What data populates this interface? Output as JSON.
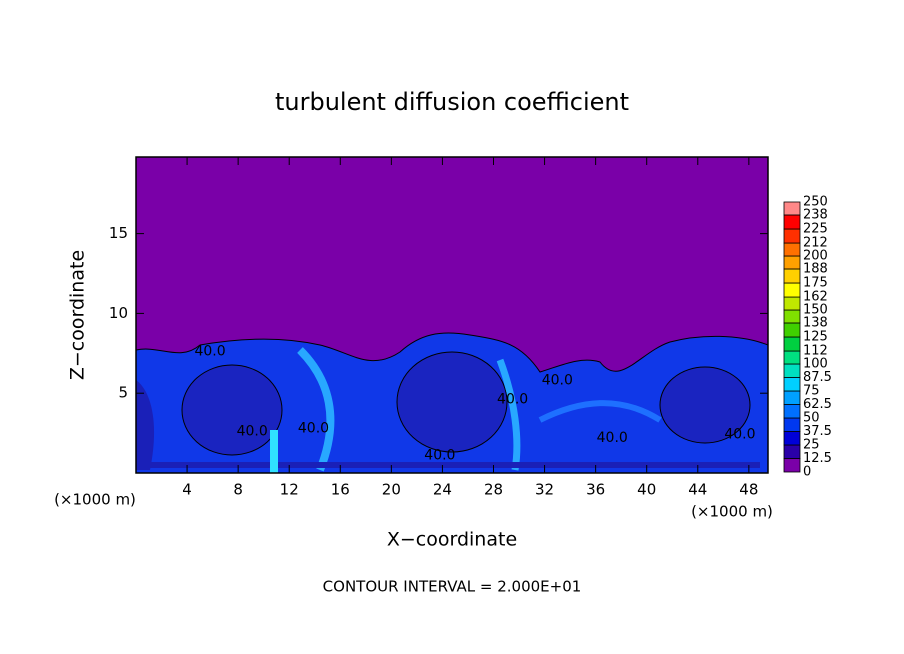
{
  "chart_data": {
    "type": "contour",
    "title": "turbulent diffusion coefficient",
    "x_label": "X−coordinate",
    "y_label": "Z−coordinate",
    "x_unit_labels": [
      "(×1000 m)",
      "(×1000 m)"
    ],
    "footer": "CONTOUR INTERVAL = 2.000E+01",
    "xlim": [
      0,
      49.5
    ],
    "ylim": [
      0,
      19.8
    ],
    "xticks": [
      4,
      8,
      12,
      16,
      20,
      24,
      28,
      32,
      36,
      40,
      44,
      48
    ],
    "yticks": [
      5,
      10,
      15
    ],
    "contour_labels": [
      {
        "value": 40,
        "label": "40.0",
        "x": 5.8,
        "y": 7.6
      },
      {
        "value": 40,
        "label": "40.0",
        "x": 9.1,
        "y": 2.6
      },
      {
        "value": 40,
        "label": "40.0",
        "x": 13.9,
        "y": 2.8
      },
      {
        "value": 40,
        "label": "40.0",
        "x": 23.8,
        "y": 1.1
      },
      {
        "value": 40,
        "label": "40.0",
        "x": 29.5,
        "y": 4.6
      },
      {
        "value": 40,
        "label": "40.0",
        "x": 33.0,
        "y": 5.8
      },
      {
        "value": 40,
        "label": "40.0",
        "x": 37.3,
        "y": 2.2
      },
      {
        "value": 40,
        "label": "40.0",
        "x": 47.3,
        "y": 2.4
      }
    ],
    "colorbar": {
      "levels": [
        0,
        12.5,
        25,
        37.5,
        50,
        62.5,
        75,
        87.5,
        100,
        112,
        125,
        138,
        150,
        162,
        175,
        188,
        200,
        212,
        225,
        238,
        250
      ],
      "colors": [
        "#7a00a8",
        "#2a00a8",
        "#0000d8",
        "#0038f0",
        "#0070ff",
        "#00a0ff",
        "#00d0ff",
        "#00e0c0",
        "#00e080",
        "#00d040",
        "#40d000",
        "#80e000",
        "#c0e800",
        "#ffff00",
        "#ffd000",
        "#ffa000",
        "#ff7000",
        "#ff3000",
        "#ff0000",
        "#ff8888"
      ]
    }
  }
}
